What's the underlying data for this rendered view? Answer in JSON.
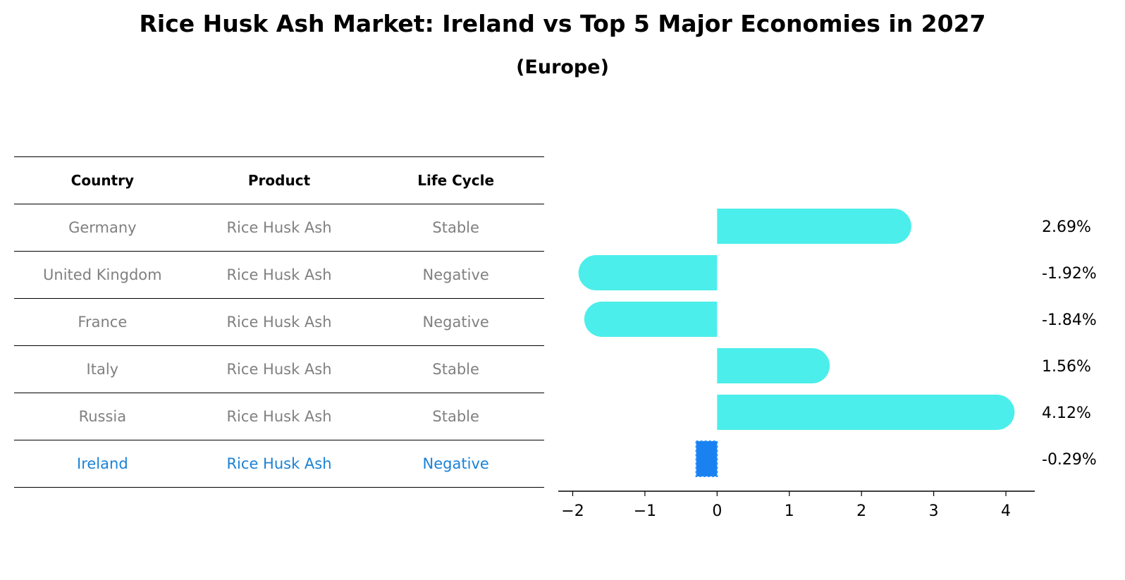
{
  "header": {
    "title": "Rice Husk Ash Market: Ireland vs Top 5 Major Economies in 2027",
    "subtitle": "(Europe)"
  },
  "table": {
    "columns": [
      "Country",
      "Product",
      "Life Cycle"
    ],
    "rows": [
      {
        "country": "Germany",
        "product": "Rice Husk Ash",
        "life_cycle": "Stable"
      },
      {
        "country": "United Kingdom",
        "product": "Rice Husk Ash",
        "life_cycle": "Negative"
      },
      {
        "country": "France",
        "product": "Rice Husk Ash",
        "life_cycle": "Negative"
      },
      {
        "country": "Italy",
        "product": "Rice Husk Ash",
        "life_cycle": "Stable"
      },
      {
        "country": "Russia",
        "product": "Rice Husk Ash",
        "life_cycle": "Stable"
      },
      {
        "country": "Ireland",
        "product": "Rice Husk Ash",
        "life_cycle": "Negative"
      }
    ],
    "colors": {
      "text": "#808080",
      "highlight": "#1a82d6"
    }
  },
  "chart_data": {
    "type": "bar",
    "orientation": "horizontal",
    "categories": [
      "Germany",
      "United Kingdom",
      "France",
      "Italy",
      "Russia",
      "Ireland"
    ],
    "values": [
      2.69,
      -1.92,
      -1.84,
      1.56,
      4.12,
      -0.29
    ],
    "value_labels": [
      "2.69%",
      "-1.92%",
      "-1.84%",
      "1.56%",
      "4.12%",
      "-0.29%"
    ],
    "xlim": [
      -2.2,
      4.4
    ],
    "xticks": [
      -2,
      -1,
      0,
      1,
      2,
      3,
      4
    ],
    "xtick_labels": [
      "−2",
      "−1",
      "0",
      "1",
      "2",
      "3",
      "4"
    ],
    "grid": false,
    "colors": {
      "bar": "#4beeea",
      "highlight": "#1a82f0"
    },
    "highlight_category": "Ireland"
  }
}
